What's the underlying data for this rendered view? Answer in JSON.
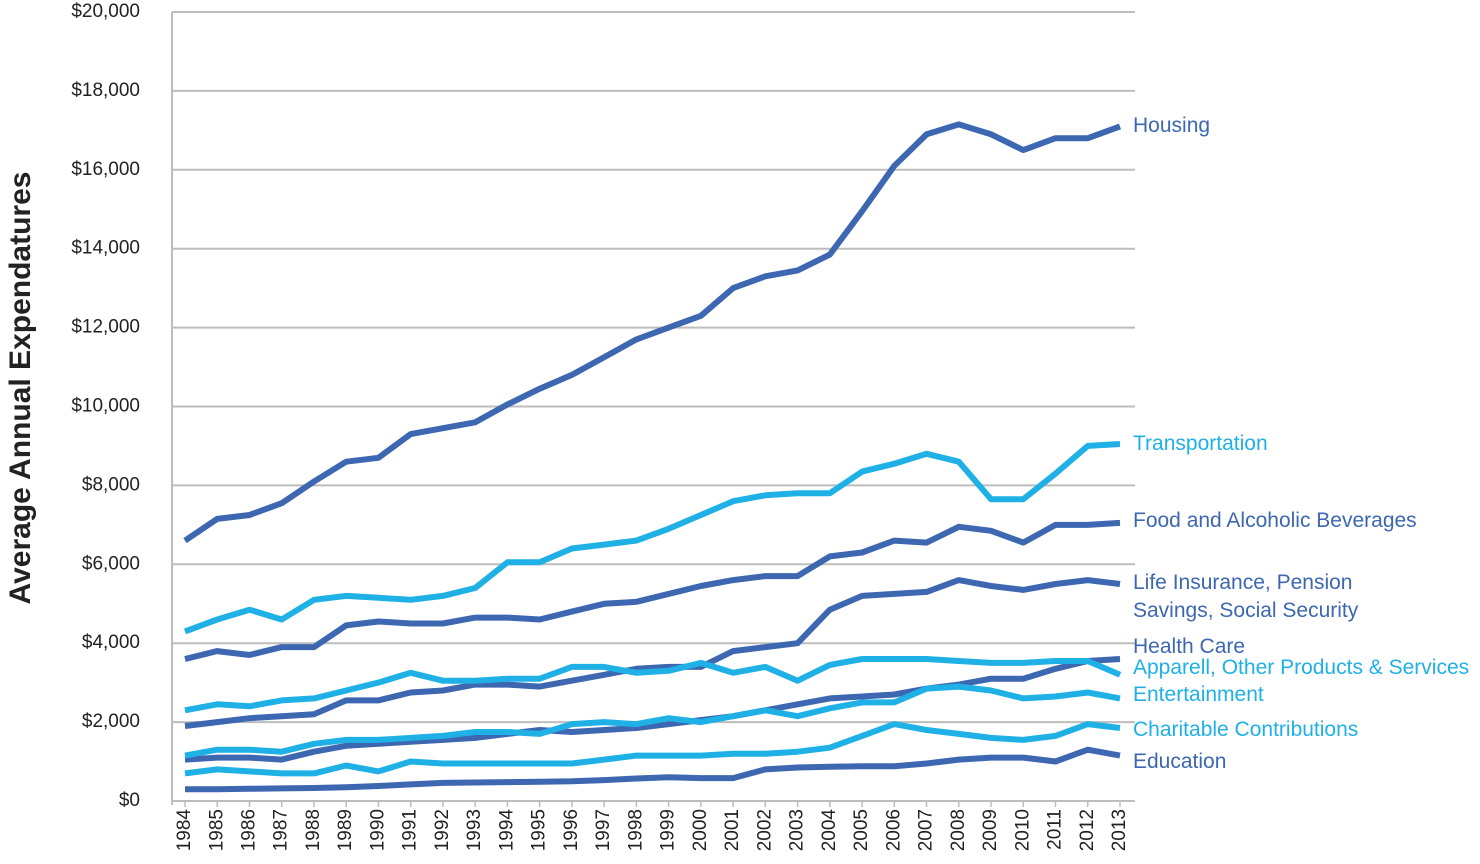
{
  "chart_data": {
    "type": "line",
    "y_label": "Average Annual Expendatures",
    "categories": [
      "1984",
      "1985",
      "1986",
      "1987",
      "1988",
      "1989",
      "1990",
      "1991",
      "1992",
      "1993",
      "1994",
      "1995",
      "1996",
      "1997",
      "1998",
      "1999",
      "2000",
      "2001",
      "2002",
      "2003",
      "2004",
      "2005",
      "2006",
      "2007",
      "2008",
      "2009",
      "2010",
      "2011",
      "2012",
      "2013"
    ],
    "ylim": [
      0,
      20000
    ],
    "yticks": [
      {
        "value": 0,
        "label": "$0"
      },
      {
        "value": 2000,
        "label": "$2,000"
      },
      {
        "value": 4000,
        "label": "$4,000"
      },
      {
        "value": 6000,
        "label": "$6,000"
      },
      {
        "value": 8000,
        "label": "$8,000"
      },
      {
        "value": 10000,
        "label": "$10,000"
      },
      {
        "value": 12000,
        "label": "$12,000"
      },
      {
        "value": 14000,
        "label": "$14,000"
      },
      {
        "value": 16000,
        "label": "$16,000"
      },
      {
        "value": 18000,
        "label": "$18,000"
      },
      {
        "value": 20000,
        "label": "$20,000"
      }
    ],
    "grid": true,
    "series": [
      {
        "name": "Housing",
        "color": "#3d67b1",
        "values": [
          6600,
          7150,
          7250,
          7550,
          8100,
          8600,
          8700,
          9300,
          9450,
          9600,
          10050,
          10450,
          10800,
          11250,
          11700,
          12000,
          12300,
          13000,
          13300,
          13450,
          13850,
          14950,
          16100,
          16900,
          17150,
          16900,
          16500,
          16800,
          16800,
          17100
        ]
      },
      {
        "name": "Transportation",
        "color": "#1fb1e6",
        "values": [
          4300,
          4600,
          4850,
          4600,
          5100,
          5200,
          5150,
          5100,
          5200,
          5400,
          6050,
          6050,
          6400,
          6500,
          6600,
          6900,
          7250,
          7600,
          7750,
          7800,
          7800,
          8350,
          8550,
          8800,
          8600,
          7650,
          7650,
          8300,
          9000,
          9050
        ]
      },
      {
        "name": "Food and Alcoholic Beverages",
        "color": "#3d67b1",
        "values": [
          3600,
          3800,
          3700,
          3900,
          3900,
          4450,
          4550,
          4500,
          4500,
          4650,
          4650,
          4600,
          4800,
          5000,
          5050,
          5250,
          5450,
          5600,
          5700,
          5700,
          6200,
          6300,
          6600,
          6550,
          6950,
          6850,
          6550,
          7000,
          7000,
          7050
        ]
      },
      {
        "name": "Life Insurance, Pension Savings, Social Security",
        "color": "#3d67b1",
        "values": [
          1900,
          2000,
          2100,
          2150,
          2200,
          2550,
          2550,
          2750,
          2800,
          2950,
          2950,
          2900,
          3050,
          3200,
          3350,
          3400,
          3400,
          3800,
          3900,
          4000,
          4850,
          5200,
          5250,
          5300,
          5600,
          5450,
          5350,
          5500,
          5600,
          5500
        ]
      },
      {
        "name": "Health Care",
        "color": "#3d67b1",
        "values": [
          1050,
          1100,
          1100,
          1050,
          1250,
          1400,
          1450,
          1500,
          1550,
          1600,
          1700,
          1800,
          1750,
          1800,
          1850,
          1950,
          2050,
          2150,
          2300,
          2450,
          2600,
          2650,
          2700,
          2850,
          2950,
          3100,
          3100,
          3350,
          3550,
          3600
        ]
      },
      {
        "name": "Apparell, Other Products & Services",
        "color": "#1fb1e6",
        "values": [
          2300,
          2450,
          2400,
          2550,
          2600,
          2800,
          3000,
          3250,
          3050,
          3050,
          3100,
          3100,
          3400,
          3400,
          3250,
          3300,
          3500,
          3250,
          3400,
          3050,
          3450,
          3600,
          3600,
          3600,
          3550,
          3500,
          3500,
          3550,
          3550,
          3200
        ]
      },
      {
        "name": "Entertainment",
        "color": "#1fb1e6",
        "values": [
          1150,
          1300,
          1300,
          1250,
          1450,
          1550,
          1550,
          1600,
          1650,
          1750,
          1750,
          1700,
          1950,
          2000,
          1950,
          2100,
          2000,
          2150,
          2300,
          2150,
          2350,
          2500,
          2500,
          2850,
          2900,
          2800,
          2600,
          2650,
          2750,
          2600
        ]
      },
      {
        "name": "Charitable Contributions",
        "color": "#1fb1e6",
        "values": [
          700,
          800,
          750,
          700,
          700,
          900,
          750,
          1000,
          950,
          950,
          950,
          950,
          950,
          1050,
          1150,
          1150,
          1150,
          1200,
          1200,
          1250,
          1350,
          1650,
          1950,
          1800,
          1700,
          1600,
          1550,
          1650,
          1950,
          1850
        ]
      },
      {
        "name": "Education",
        "color": "#3d67b1",
        "values": [
          300,
          300,
          310,
          320,
          330,
          350,
          380,
          420,
          460,
          470,
          480,
          490,
          500,
          530,
          570,
          600,
          580,
          580,
          800,
          850,
          870,
          880,
          880,
          950,
          1050,
          1100,
          1100,
          1000,
          1300,
          1150
        ]
      }
    ]
  }
}
